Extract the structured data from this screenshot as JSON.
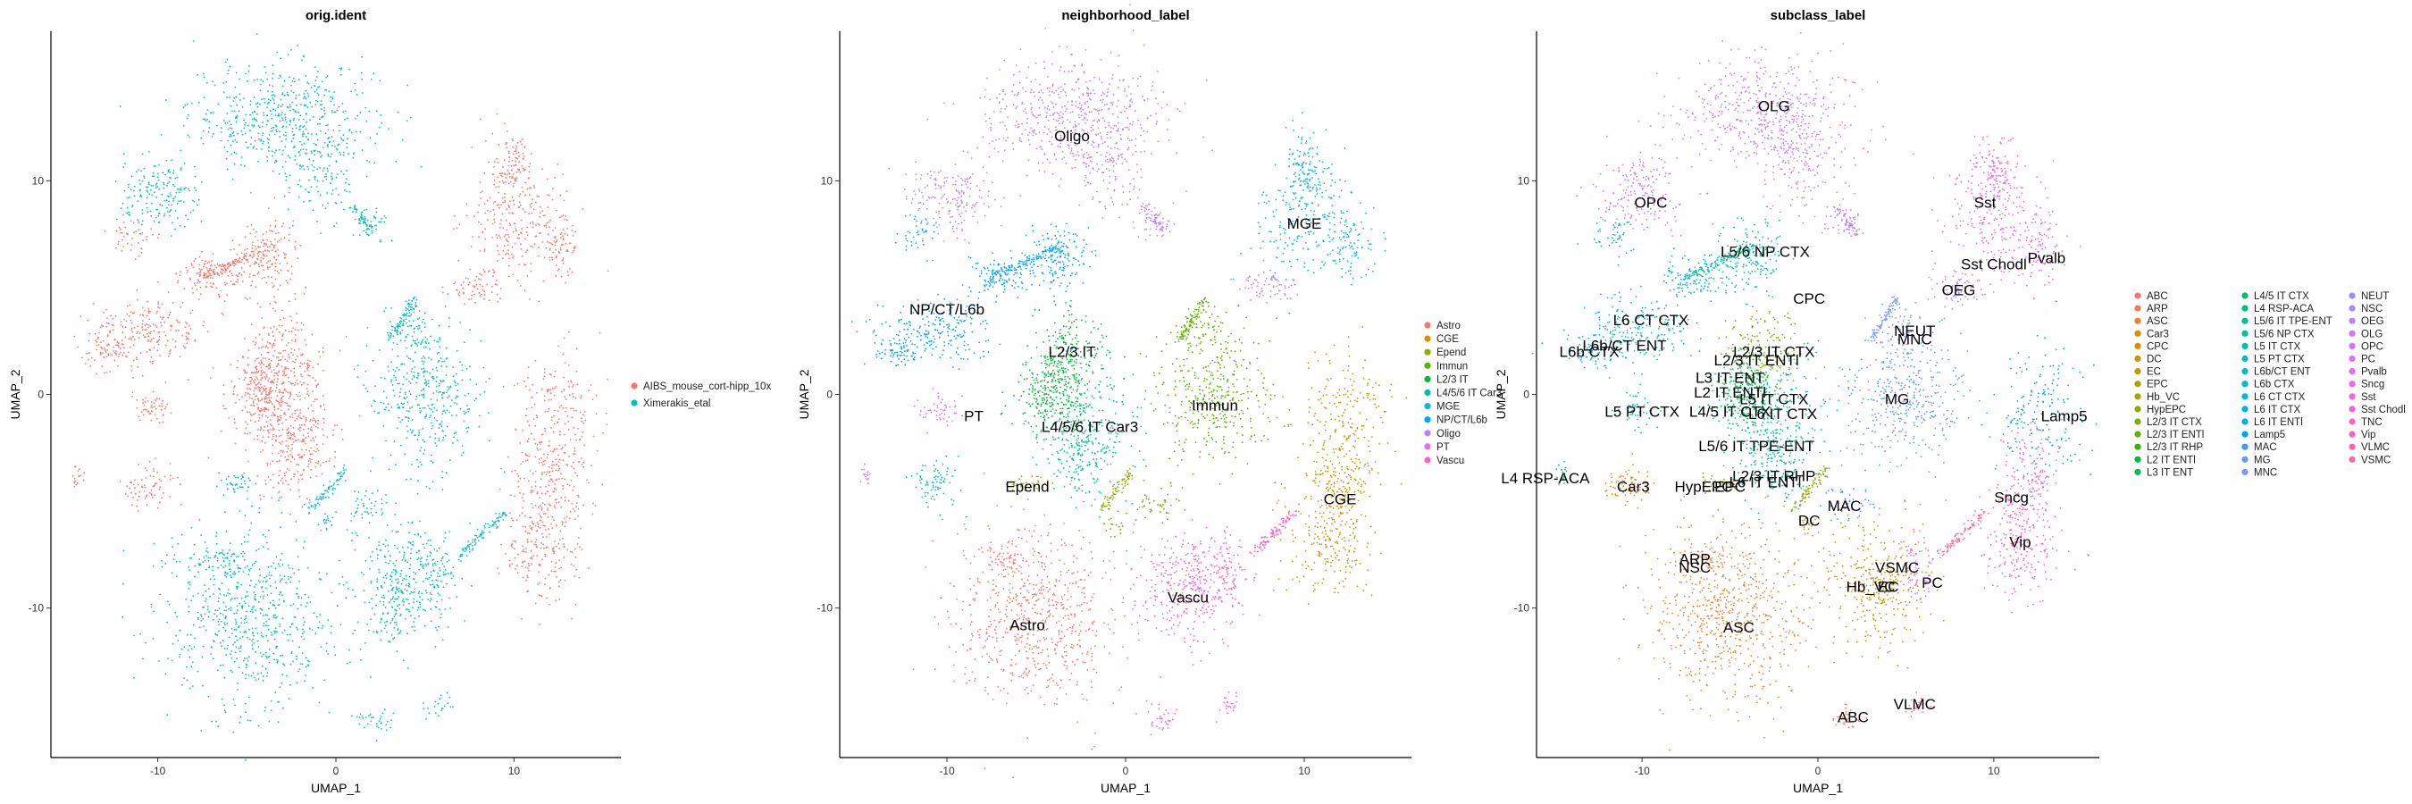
{
  "chart_data": [
    {
      "type": "scatter",
      "title": "orig.ident",
      "xlabel": "UMAP_1",
      "ylabel": "UMAP_2",
      "xlim": [
        -16,
        16
      ],
      "ylim": [
        -17,
        17
      ],
      "xticks": [
        -10,
        0,
        10
      ],
      "yticks": [
        -10,
        0,
        10
      ],
      "xtick_labels": [
        "-10",
        "0",
        "10"
      ],
      "ytick_labels": [
        "-10",
        "0",
        "10"
      ],
      "legend": [
        {
          "label": "AIBS_mouse_cort-hipp_10x",
          "color": "#F8766D"
        },
        {
          "label": "Ximerakis_etal",
          "color": "#00BFC4"
        }
      ],
      "cluster_labels": []
    },
    {
      "type": "scatter",
      "title": "neighborhood_label",
      "xlabel": "UMAP_1",
      "ylabel": "UMAP_2",
      "xlim": [
        -16,
        16
      ],
      "ylim": [
        -17,
        17
      ],
      "xticks": [
        -10,
        0,
        10
      ],
      "yticks": [
        -10,
        0,
        10
      ],
      "xtick_labels": [
        "-10",
        "0",
        "10"
      ],
      "ytick_labels": [
        "-10",
        "0",
        "10"
      ],
      "legend": [
        {
          "label": "Astro",
          "color": "#F8766D"
        },
        {
          "label": "CGE",
          "color": "#D39200"
        },
        {
          "label": "Epend",
          "color": "#93AA00"
        },
        {
          "label": "Immun",
          "color": "#5BB300"
        },
        {
          "label": "L2/3 IT",
          "color": "#00BA38"
        },
        {
          "label": "L4/5/6 IT Car3",
          "color": "#00C19F"
        },
        {
          "label": "MGE",
          "color": "#00B9E3"
        },
        {
          "label": "NP/CT/L6b",
          "color": "#00A5FF"
        },
        {
          "label": "Oligo",
          "color": "#B983FF"
        },
        {
          "label": "PT",
          "color": "#E76BF3"
        },
        {
          "label": "Vascu",
          "color": "#FF61C3"
        }
      ],
      "cluster_labels": [
        {
          "text": "Oligo",
          "x": -3.0,
          "y": 12.1
        },
        {
          "text": "MGE",
          "x": 10.0,
          "y": 8.0
        },
        {
          "text": "NP/CT/L6b",
          "x": -10.0,
          "y": 4.0
        },
        {
          "text": "L2/3 IT",
          "x": -3.0,
          "y": 2.0
        },
        {
          "text": "Immun",
          "x": 5.0,
          "y": -0.5
        },
        {
          "text": "PT",
          "x": -8.5,
          "y": -1.0
        },
        {
          "text": "L4/5/6 IT Car3",
          "x": -2.0,
          "y": -1.5
        },
        {
          "text": "CGE",
          "x": 12.0,
          "y": -4.9
        },
        {
          "text": "Epend",
          "x": -5.5,
          "y": -4.3
        },
        {
          "text": "Vascu",
          "x": 3.5,
          "y": -9.5
        },
        {
          "text": "Astro",
          "x": -5.5,
          "y": -10.8
        }
      ]
    },
    {
      "type": "scatter",
      "title": "subclass_label",
      "xlabel": "UMAP_1",
      "ylabel": "UMAP_2",
      "xlim": [
        -16,
        16
      ],
      "ylim": [
        -17,
        17
      ],
      "xticks": [
        -10,
        0,
        10
      ],
      "yticks": [
        -10,
        0,
        10
      ],
      "xtick_labels": [
        "-10",
        "0",
        "10"
      ],
      "ytick_labels": [
        "-10",
        "0",
        "10"
      ],
      "legend": [
        {
          "label": "ABC",
          "color": "#F8766D"
        },
        {
          "label": "ARP",
          "color": "#F27D52"
        },
        {
          "label": "ASC",
          "color": "#EA8331"
        },
        {
          "label": "Car3",
          "color": "#E18A00"
        },
        {
          "label": "CPC",
          "color": "#D89000"
        },
        {
          "label": "DC",
          "color": "#CD9600"
        },
        {
          "label": "EC",
          "color": "#C09B00"
        },
        {
          "label": "EPC",
          "color": "#B3A000"
        },
        {
          "label": "Hb_VC",
          "color": "#A3A500"
        },
        {
          "label": "HypEPC",
          "color": "#92A900"
        },
        {
          "label": "L2/3 IT CTX",
          "color": "#7CAE00"
        },
        {
          "label": "L2/3 IT ENTl",
          "color": "#5FB300"
        },
        {
          "label": "L2/3 IT RHP",
          "color": "#31B600"
        },
        {
          "label": "L2 IT ENTl",
          "color": "#00BA38"
        },
        {
          "label": "L3 IT ENT",
          "color": "#00BC56"
        },
        {
          "label": "L4/5 IT CTX",
          "color": "#00BE6C"
        },
        {
          "label": "L4 RSP-ACA",
          "color": "#00BF7D"
        },
        {
          "label": "L5/6 IT TPE-ENT",
          "color": "#00C08D"
        },
        {
          "label": "L5/6 NP CTX",
          "color": "#00C19C"
        },
        {
          "label": "L5 IT CTX",
          "color": "#00C0AB"
        },
        {
          "label": "L5 PT CTX",
          "color": "#00BFB8"
        },
        {
          "label": "L6b/CT ENT",
          "color": "#00BDC4"
        },
        {
          "label": "L6b CTX",
          "color": "#00BAD0"
        },
        {
          "label": "L6 CT CTX",
          "color": "#00B6DC"
        },
        {
          "label": "L6 IT CTX",
          "color": "#00B0E6"
        },
        {
          "label": "L6 IT ENTl",
          "color": "#00A9F0"
        },
        {
          "label": "Lamp5",
          "color": "#00A1F9"
        },
        {
          "label": "MAC",
          "color": "#3B99FF"
        },
        {
          "label": "MG",
          "color": "#619CFF"
        },
        {
          "label": "MNC",
          "color": "#7F96FF"
        },
        {
          "label": "NEUT",
          "color": "#9590FF"
        },
        {
          "label": "NSC",
          "color": "#A88BFF"
        },
        {
          "label": "OEG",
          "color": "#B983FF"
        },
        {
          "label": "OLG",
          "color": "#C77CFF"
        },
        {
          "label": "OPC",
          "color": "#D474F9"
        },
        {
          "label": "PC",
          "color": "#DF70F8"
        },
        {
          "label": "Pvalb",
          "color": "#E76BF3"
        },
        {
          "label": "Sncg",
          "color": "#EF67EB"
        },
        {
          "label": "Sst",
          "color": "#F564E3"
        },
        {
          "label": "Sst Chodl",
          "color": "#FB61D7"
        },
        {
          "label": "TNC",
          "color": "#FF61CB"
        },
        {
          "label": "Vip",
          "color": "#FF62BC"
        },
        {
          "label": "VLMC",
          "color": "#FF65AC"
        },
        {
          "label": "VSMC",
          "color": "#FF6A98"
        }
      ],
      "cluster_labels": [
        {
          "text": "OLG",
          "x": -2.5,
          "y": 13.5
        },
        {
          "text": "OPC",
          "x": -9.5,
          "y": 9.0
        },
        {
          "text": "Sst",
          "x": 9.5,
          "y": 9.0
        },
        {
          "text": "L5/6 NP CTX",
          "x": -3.0,
          "y": 6.7
        },
        {
          "text": "Sst Chodl",
          "x": 10.0,
          "y": 6.1
        },
        {
          "text": "Pvalb",
          "x": 13.0,
          "y": 6.4
        },
        {
          "text": "OEG",
          "x": 8.0,
          "y": 4.9
        },
        {
          "text": "CPC",
          "x": -0.5,
          "y": 4.5
        },
        {
          "text": "L6 CT CTX",
          "x": -9.5,
          "y": 3.5
        },
        {
          "text": "NEUT",
          "x": 5.5,
          "y": 3.0
        },
        {
          "text": "MNC",
          "x": 5.5,
          "y": 2.6
        },
        {
          "text": "L6b/CT ENT",
          "x": -11.0,
          "y": 2.3
        },
        {
          "text": "L6b CTX",
          "x": -13.0,
          "y": 2.0
        },
        {
          "text": "L2/3 IT CTX",
          "x": -2.5,
          "y": 2.0
        },
        {
          "text": "L2/3 IT ENTl",
          "x": -3.5,
          "y": 1.6
        },
        {
          "text": "L3 IT ENT",
          "x": -5.0,
          "y": 0.8
        },
        {
          "text": "L2 IT ENTl",
          "x": -5.0,
          "y": 0.1
        },
        {
          "text": "L5 IT CTX",
          "x": -2.5,
          "y": -0.2
        },
        {
          "text": "MG",
          "x": 4.5,
          "y": -0.2
        },
        {
          "text": "L4/5 IT CTX",
          "x": -5.0,
          "y": -0.8
        },
        {
          "text": "L6 IT CTX",
          "x": -2.0,
          "y": -0.9
        },
        {
          "text": "L5 PT CTX",
          "x": -10.0,
          "y": -0.8
        },
        {
          "text": "Lamp5",
          "x": 14.0,
          "y": -1.0
        },
        {
          "text": "L5/6 IT TPE-ENT",
          "x": -3.5,
          "y": -2.4
        },
        {
          "text": "L2/3 IT RHP",
          "x": -2.5,
          "y": -3.8
        },
        {
          "text": "L4 RSP-ACA",
          "x": -15.5,
          "y": -3.9
        },
        {
          "text": "Car3",
          "x": -10.5,
          "y": -4.3
        },
        {
          "text": "HypEPC",
          "x": -6.5,
          "y": -4.3
        },
        {
          "text": "EPC",
          "x": -5.0,
          "y": -4.3
        },
        {
          "text": "L6 IT ENTl",
          "x": -3.0,
          "y": -4.1
        },
        {
          "text": "Sncg",
          "x": 11.0,
          "y": -4.8
        },
        {
          "text": "MAC",
          "x": 1.5,
          "y": -5.2
        },
        {
          "text": "DC",
          "x": -0.5,
          "y": -5.9
        },
        {
          "text": "Vip",
          "x": 11.5,
          "y": -6.9
        },
        {
          "text": "ARP",
          "x": -7.0,
          "y": -7.7
        },
        {
          "text": "NSC",
          "x": -7.0,
          "y": -8.1
        },
        {
          "text": "VSMC",
          "x": 4.5,
          "y": -8.1
        },
        {
          "text": "Hb_VC",
          "x": 3.0,
          "y": -9.0
        },
        {
          "text": "EC",
          "x": 4.0,
          "y": -9.0
        },
        {
          "text": "PC",
          "x": 6.5,
          "y": -8.8
        },
        {
          "text": "ASC",
          "x": -4.5,
          "y": -10.9
        },
        {
          "text": "VLMC",
          "x": 5.5,
          "y": -14.5
        },
        {
          "text": "ABC",
          "x": 2.0,
          "y": -15.1
        }
      ]
    }
  ]
}
